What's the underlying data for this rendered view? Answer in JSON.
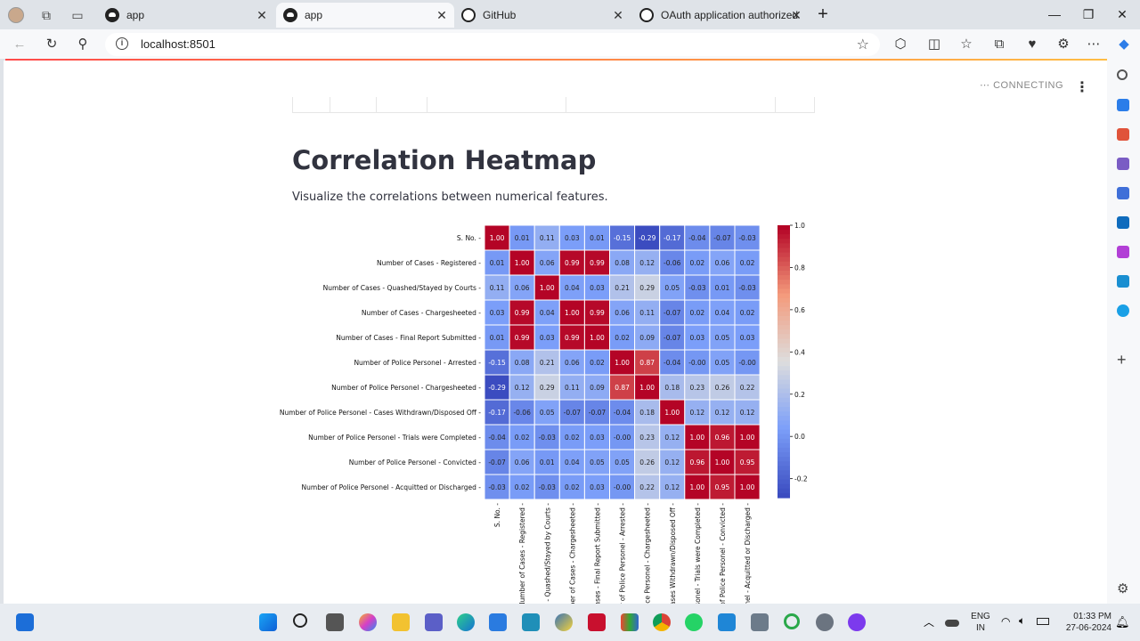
{
  "browser": {
    "tabs": [
      {
        "title": "app",
        "icon": "streamlit-icon",
        "active": false
      },
      {
        "title": "app",
        "icon": "streamlit-icon",
        "active": true
      },
      {
        "title": "GitHub",
        "icon": "github-icon",
        "active": false
      },
      {
        "title": "OAuth application authorized",
        "icon": "github-icon",
        "active": false
      }
    ],
    "new_tab": "+",
    "url": "localhost:8501"
  },
  "app": {
    "status": "CONNECTING",
    "heading": "Correlation Heatmap",
    "subtext": "Visualize the correlations between numerical features."
  },
  "chart_data": {
    "type": "heatmap",
    "title": "",
    "labels": [
      "S. No.",
      "Number of Cases - Registered",
      "Number of Cases - Quashed/Stayed by Courts",
      "Number of Cases - Chargesheeted",
      "Number of Cases - Final Report Submitted",
      "Number of Police Personel - Arrested",
      "Number of Police Personel - Chargesheeted",
      "Number of Police Personel - Cases Withdrawn/Disposed Off",
      "Number of Police Personel - Trials were Completed",
      "Number of Police Personel - Convicted",
      "Number of Police Personel - Acquitted or Discharged"
    ],
    "x_tick_labels": [
      "S. No.",
      "Number of Cases - Registered",
      "ses - Quashed/Stayed by Courts",
      "umber of Cases - Chargesheeted",
      "f Cases - Final Report Submitted",
      "ber of Police Personel - Arrested",
      "Police Personel - Chargesheeted",
      "- Cases Withdrawn/Disposed Off",
      "Personel - Trials were Completed",
      "er of Police Personel - Convicted",
      "rsonel - Acquitted or Discharged"
    ],
    "values": [
      [
        "1.00",
        "0.01",
        "0.11",
        "0.03",
        "0.01",
        "-0.15",
        "-0.29",
        "-0.17",
        "-0.04",
        "-0.07",
        "-0.03"
      ],
      [
        "0.01",
        "1.00",
        "0.06",
        "0.99",
        "0.99",
        "0.08",
        "0.12",
        "-0.06",
        "0.02",
        "0.06",
        "0.02"
      ],
      [
        "0.11",
        "0.06",
        "1.00",
        "0.04",
        "0.03",
        "0.21",
        "0.29",
        "0.05",
        "-0.03",
        "0.01",
        "-0.03"
      ],
      [
        "0.03",
        "0.99",
        "0.04",
        "1.00",
        "0.99",
        "0.06",
        "0.11",
        "-0.07",
        "0.02",
        "0.04",
        "0.02"
      ],
      [
        "0.01",
        "0.99",
        "0.03",
        "0.99",
        "1.00",
        "0.02",
        "0.09",
        "-0.07",
        "0.03",
        "0.05",
        "0.03"
      ],
      [
        "-0.15",
        "0.08",
        "0.21",
        "0.06",
        "0.02",
        "1.00",
        "0.87",
        "-0.04",
        "-0.00",
        "0.05",
        "-0.00"
      ],
      [
        "-0.29",
        "0.12",
        "0.29",
        "0.11",
        "0.09",
        "0.87",
        "1.00",
        "0.18",
        "0.23",
        "0.26",
        "0.22"
      ],
      [
        "-0.17",
        "-0.06",
        "0.05",
        "-0.07",
        "-0.07",
        "-0.04",
        "0.18",
        "1.00",
        "0.12",
        "0.12",
        "0.12"
      ],
      [
        "-0.04",
        "0.02",
        "-0.03",
        "0.02",
        "0.03",
        "-0.00",
        "0.23",
        "0.12",
        "1.00",
        "0.96",
        "1.00"
      ],
      [
        "-0.07",
        "0.06",
        "0.01",
        "0.04",
        "0.05",
        "0.05",
        "0.26",
        "0.12",
        "0.96",
        "1.00",
        "0.95"
      ],
      [
        "-0.03",
        "0.02",
        "-0.03",
        "0.02",
        "0.03",
        "-0.00",
        "0.22",
        "0.12",
        "1.00",
        "0.95",
        "1.00"
      ]
    ],
    "colorbar": {
      "colormap": "coolwarm",
      "vmin": -0.29,
      "vmax": 1.0,
      "ticks": [
        "1.0",
        "0.8",
        "0.6",
        "0.4",
        "0.2",
        "0.0",
        "-0.2"
      ]
    }
  },
  "taskbar": {
    "lang_top": "ENG",
    "lang_bottom": "IN",
    "time": "01:33 PM",
    "date": "27-06-2024"
  }
}
